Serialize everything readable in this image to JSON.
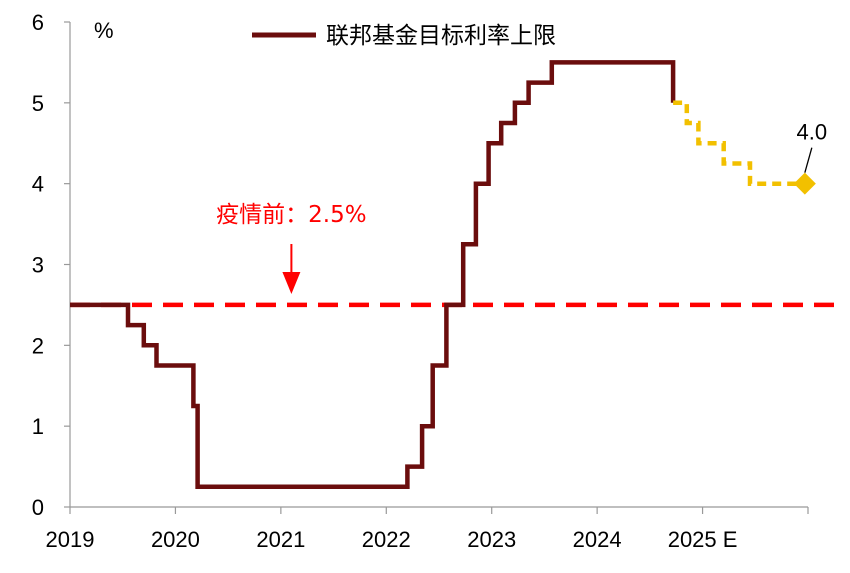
{
  "chart_data": {
    "type": "line",
    "unit_label": "%",
    "y_ticks": [
      "0",
      "1",
      "2",
      "3",
      "4",
      "5",
      "6"
    ],
    "x_ticks": [
      "2019",
      "2020",
      "2021",
      "2022",
      "2023",
      "2024",
      "2025 E"
    ],
    "ylim": [
      0,
      6
    ],
    "xlim": [
      2019.0,
      2026.0
    ],
    "grid": false,
    "legend_position": "top",
    "series": [
      {
        "name": "联邦基金目标利率上限",
        "color": "#6b0d0d",
        "style": "solid",
        "points": [
          [
            2019.0,
            2.5
          ],
          [
            2019.55,
            2.5
          ],
          [
            2019.55,
            2.25
          ],
          [
            2019.7,
            2.25
          ],
          [
            2019.7,
            2.0
          ],
          [
            2019.82,
            2.0
          ],
          [
            2019.82,
            1.75
          ],
          [
            2020.17,
            1.75
          ],
          [
            2020.17,
            1.25
          ],
          [
            2020.21,
            1.25
          ],
          [
            2020.21,
            0.25
          ],
          [
            2022.2,
            0.25
          ],
          [
            2022.2,
            0.5
          ],
          [
            2022.34,
            0.5
          ],
          [
            2022.34,
            1.0
          ],
          [
            2022.44,
            1.0
          ],
          [
            2022.44,
            1.75
          ],
          [
            2022.57,
            1.75
          ],
          [
            2022.57,
            2.5
          ],
          [
            2022.73,
            2.5
          ],
          [
            2022.73,
            3.25
          ],
          [
            2022.85,
            3.25
          ],
          [
            2022.85,
            4.0
          ],
          [
            2022.97,
            4.0
          ],
          [
            2022.97,
            4.5
          ],
          [
            2023.09,
            4.5
          ],
          [
            2023.09,
            4.75
          ],
          [
            2023.22,
            4.75
          ],
          [
            2023.22,
            5.0
          ],
          [
            2023.35,
            5.0
          ],
          [
            2023.35,
            5.25
          ],
          [
            2023.57,
            5.25
          ],
          [
            2023.57,
            5.5
          ],
          [
            2024.72,
            5.5
          ],
          [
            2024.72,
            5.0
          ]
        ]
      },
      {
        "name": "",
        "color": "#f2c000",
        "style": "dashed",
        "points": [
          [
            2024.72,
            5.0
          ],
          [
            2024.85,
            5.0
          ],
          [
            2024.85,
            4.75
          ],
          [
            2024.96,
            4.75
          ],
          [
            2024.96,
            4.5
          ],
          [
            2025.2,
            4.5
          ],
          [
            2025.2,
            4.25
          ],
          [
            2025.45,
            4.25
          ],
          [
            2025.45,
            4.0
          ],
          [
            2025.97,
            4.0
          ]
        ]
      }
    ],
    "reference_line": {
      "value": 2.5,
      "color": "#ff0000",
      "style": "dashed"
    },
    "annotations": [
      {
        "text": "疫情前：2.5%",
        "x": 2021.1,
        "y": 2.5,
        "color": "#ff0000",
        "arrow": true
      },
      {
        "text": "4.0",
        "x": 2025.97,
        "y": 4.0,
        "color": "#000000",
        "marker": "diamond",
        "marker_color": "#f2c000"
      }
    ]
  }
}
